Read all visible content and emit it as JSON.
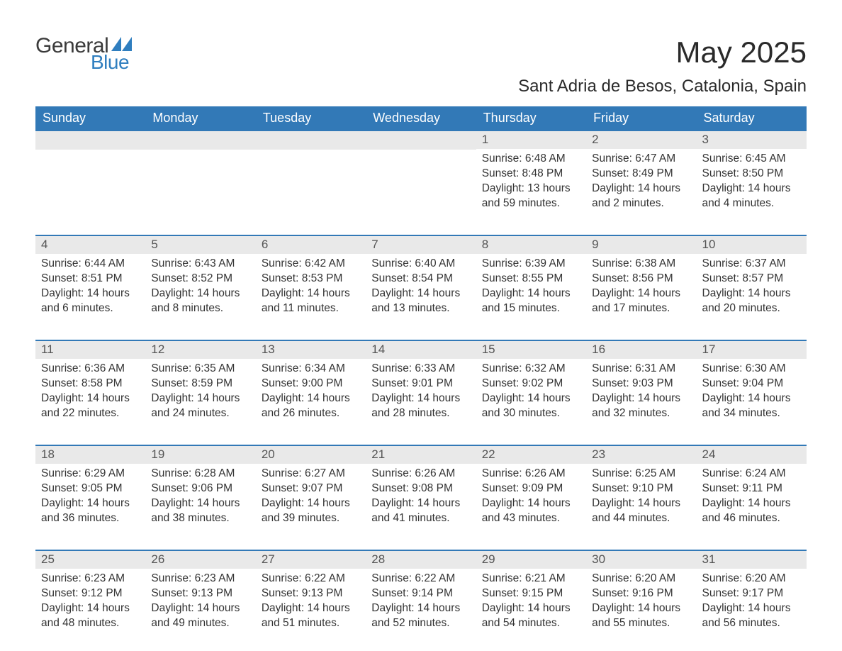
{
  "logo": {
    "word1": "General",
    "word2": "Blue"
  },
  "title": "May 2025",
  "subtitle": "Sant Adria de Besos, Catalonia, Spain",
  "colors": {
    "header_bg": "#3279b7",
    "header_text": "#ffffff",
    "daynum_bg": "#e9e9e9",
    "daynum_text": "#555555",
    "body_text": "#333333",
    "rule": "#3279b7",
    "logo_gray": "#3a3a3a",
    "logo_blue": "#2f7ebf"
  },
  "day_headers": [
    "Sunday",
    "Monday",
    "Tuesday",
    "Wednesday",
    "Thursday",
    "Friday",
    "Saturday"
  ],
  "weeks": [
    [
      null,
      null,
      null,
      null,
      {
        "n": "1",
        "sunrise": "6:48 AM",
        "sunset": "8:48 PM",
        "day_h": "13",
        "day_m": "59"
      },
      {
        "n": "2",
        "sunrise": "6:47 AM",
        "sunset": "8:49 PM",
        "day_h": "14",
        "day_m": "2"
      },
      {
        "n": "3",
        "sunrise": "6:45 AM",
        "sunset": "8:50 PM",
        "day_h": "14",
        "day_m": "4"
      }
    ],
    [
      {
        "n": "4",
        "sunrise": "6:44 AM",
        "sunset": "8:51 PM",
        "day_h": "14",
        "day_m": "6"
      },
      {
        "n": "5",
        "sunrise": "6:43 AM",
        "sunset": "8:52 PM",
        "day_h": "14",
        "day_m": "8"
      },
      {
        "n": "6",
        "sunrise": "6:42 AM",
        "sunset": "8:53 PM",
        "day_h": "14",
        "day_m": "11"
      },
      {
        "n": "7",
        "sunrise": "6:40 AM",
        "sunset": "8:54 PM",
        "day_h": "14",
        "day_m": "13"
      },
      {
        "n": "8",
        "sunrise": "6:39 AM",
        "sunset": "8:55 PM",
        "day_h": "14",
        "day_m": "15"
      },
      {
        "n": "9",
        "sunrise": "6:38 AM",
        "sunset": "8:56 PM",
        "day_h": "14",
        "day_m": "17"
      },
      {
        "n": "10",
        "sunrise": "6:37 AM",
        "sunset": "8:57 PM",
        "day_h": "14",
        "day_m": "20"
      }
    ],
    [
      {
        "n": "11",
        "sunrise": "6:36 AM",
        "sunset": "8:58 PM",
        "day_h": "14",
        "day_m": "22"
      },
      {
        "n": "12",
        "sunrise": "6:35 AM",
        "sunset": "8:59 PM",
        "day_h": "14",
        "day_m": "24"
      },
      {
        "n": "13",
        "sunrise": "6:34 AM",
        "sunset": "9:00 PM",
        "day_h": "14",
        "day_m": "26"
      },
      {
        "n": "14",
        "sunrise": "6:33 AM",
        "sunset": "9:01 PM",
        "day_h": "14",
        "day_m": "28"
      },
      {
        "n": "15",
        "sunrise": "6:32 AM",
        "sunset": "9:02 PM",
        "day_h": "14",
        "day_m": "30"
      },
      {
        "n": "16",
        "sunrise": "6:31 AM",
        "sunset": "9:03 PM",
        "day_h": "14",
        "day_m": "32"
      },
      {
        "n": "17",
        "sunrise": "6:30 AM",
        "sunset": "9:04 PM",
        "day_h": "14",
        "day_m": "34"
      }
    ],
    [
      {
        "n": "18",
        "sunrise": "6:29 AM",
        "sunset": "9:05 PM",
        "day_h": "14",
        "day_m": "36"
      },
      {
        "n": "19",
        "sunrise": "6:28 AM",
        "sunset": "9:06 PM",
        "day_h": "14",
        "day_m": "38"
      },
      {
        "n": "20",
        "sunrise": "6:27 AM",
        "sunset": "9:07 PM",
        "day_h": "14",
        "day_m": "39"
      },
      {
        "n": "21",
        "sunrise": "6:26 AM",
        "sunset": "9:08 PM",
        "day_h": "14",
        "day_m": "41"
      },
      {
        "n": "22",
        "sunrise": "6:26 AM",
        "sunset": "9:09 PM",
        "day_h": "14",
        "day_m": "43"
      },
      {
        "n": "23",
        "sunrise": "6:25 AM",
        "sunset": "9:10 PM",
        "day_h": "14",
        "day_m": "44"
      },
      {
        "n": "24",
        "sunrise": "6:24 AM",
        "sunset": "9:11 PM",
        "day_h": "14",
        "day_m": "46"
      }
    ],
    [
      {
        "n": "25",
        "sunrise": "6:23 AM",
        "sunset": "9:12 PM",
        "day_h": "14",
        "day_m": "48"
      },
      {
        "n": "26",
        "sunrise": "6:23 AM",
        "sunset": "9:13 PM",
        "day_h": "14",
        "day_m": "49"
      },
      {
        "n": "27",
        "sunrise": "6:22 AM",
        "sunset": "9:13 PM",
        "day_h": "14",
        "day_m": "51"
      },
      {
        "n": "28",
        "sunrise": "6:22 AM",
        "sunset": "9:14 PM",
        "day_h": "14",
        "day_m": "52"
      },
      {
        "n": "29",
        "sunrise": "6:21 AM",
        "sunset": "9:15 PM",
        "day_h": "14",
        "day_m": "54"
      },
      {
        "n": "30",
        "sunrise": "6:20 AM",
        "sunset": "9:16 PM",
        "day_h": "14",
        "day_m": "55"
      },
      {
        "n": "31",
        "sunrise": "6:20 AM",
        "sunset": "9:17 PM",
        "day_h": "14",
        "day_m": "56"
      }
    ]
  ],
  "labels": {
    "sunrise": "Sunrise:",
    "sunset": "Sunset:",
    "daylight": "Daylight:",
    "hours": "hours",
    "and": "and",
    "minutes": "minutes."
  }
}
